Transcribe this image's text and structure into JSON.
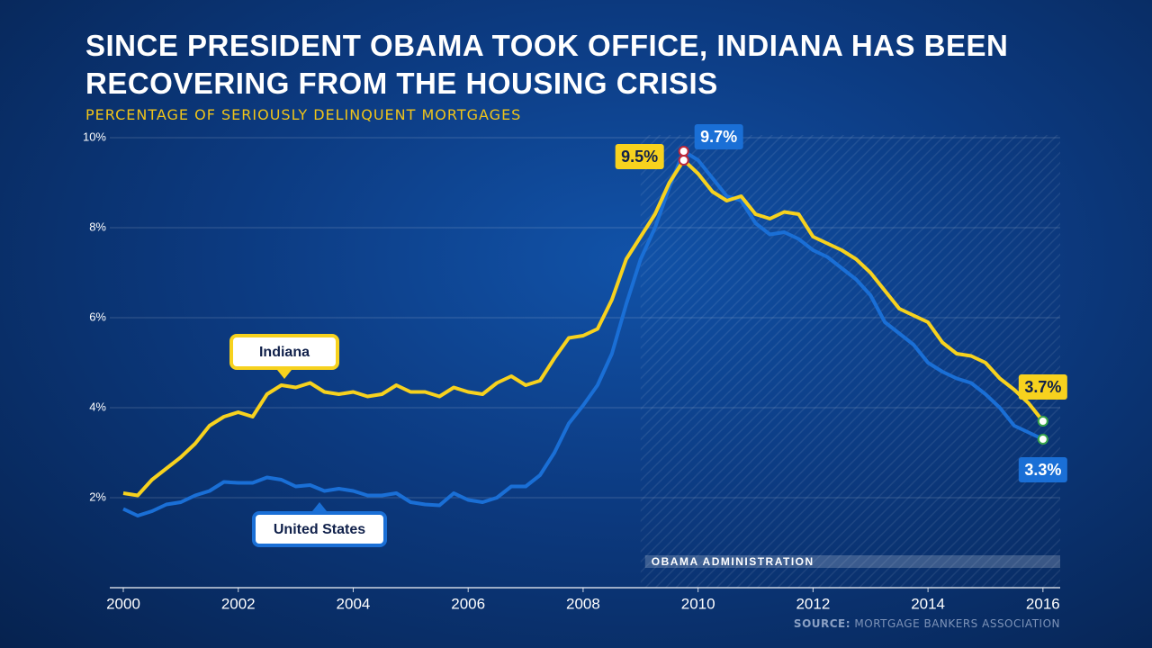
{
  "chart_data": {
    "type": "line",
    "title": "SINCE PRESIDENT OBAMA TOOK OFFICE, INDIANA HAS BEEN RECOVERING FROM THE HOUSING CRISIS",
    "subtitle": "PERCENTAGE OF SERIOUSLY DELINQUENT MORTGAGES",
    "source_label": "SOURCE:",
    "source": "MORTGAGE BANKERS ASSOCIATION",
    "x": [
      2000,
      2000.25,
      2000.5,
      2000.75,
      2001,
      2001.25,
      2001.5,
      2001.75,
      2002,
      2002.25,
      2002.5,
      2002.75,
      2003,
      2003.25,
      2003.5,
      2003.75,
      2004,
      2004.25,
      2004.5,
      2004.75,
      2005,
      2005.25,
      2005.5,
      2005.75,
      2006,
      2006.25,
      2006.5,
      2006.75,
      2007,
      2007.25,
      2007.5,
      2007.75,
      2008,
      2008.25,
      2008.5,
      2008.75,
      2009,
      2009.25,
      2009.5,
      2009.75,
      2010,
      2010.25,
      2010.5,
      2010.75,
      2011,
      2011.25,
      2011.5,
      2011.75,
      2012,
      2012.25,
      2012.5,
      2012.75,
      2013,
      2013.25,
      2013.5,
      2013.75,
      2014,
      2014.25,
      2014.5,
      2014.75,
      2015,
      2015.25,
      2015.5,
      2015.75,
      2016
    ],
    "series": [
      {
        "name": "Indiana",
        "color": "#f7d21e",
        "values": [
          2.1,
          2.05,
          2.4,
          2.65,
          2.9,
          3.2,
          3.6,
          3.8,
          3.9,
          3.8,
          4.3,
          4.5,
          4.45,
          4.55,
          4.35,
          4.3,
          4.35,
          4.25,
          4.3,
          4.5,
          4.35,
          4.35,
          4.25,
          4.45,
          4.35,
          4.3,
          4.55,
          4.7,
          4.5,
          4.6,
          5.1,
          5.55,
          5.6,
          5.75,
          6.4,
          7.3,
          7.8,
          8.3,
          9.0,
          9.5,
          9.2,
          8.8,
          8.6,
          8.7,
          8.3,
          8.2,
          8.35,
          8.3,
          7.8,
          7.65,
          7.5,
          7.3,
          7.0,
          6.6,
          6.2,
          6.05,
          5.9,
          5.45,
          5.2,
          5.15,
          5.0,
          4.65,
          4.4,
          4.1,
          3.7
        ],
        "value_labels": [
          null,
          null,
          null,
          null,
          null,
          null,
          null,
          null,
          null,
          null,
          null,
          null,
          null,
          null,
          null,
          null,
          null,
          null,
          null,
          null,
          null,
          null,
          null,
          null,
          null,
          null,
          null,
          null,
          null,
          null,
          null,
          null,
          null,
          null,
          null,
          null,
          null,
          null,
          null,
          "9.5%",
          null,
          null,
          null,
          null,
          null,
          null,
          null,
          null,
          null,
          null,
          null,
          null,
          null,
          null,
          null,
          null,
          null,
          null,
          null,
          null,
          null,
          null,
          null,
          null,
          "3.7%"
        ]
      },
      {
        "name": "United States",
        "color": "#1a6fd6",
        "values": [
          1.75,
          1.6,
          1.7,
          1.85,
          1.9,
          2.05,
          2.15,
          2.35,
          2.33,
          2.33,
          2.45,
          2.4,
          2.25,
          2.28,
          2.15,
          2.2,
          2.15,
          2.05,
          2.05,
          2.1,
          1.9,
          1.85,
          1.83,
          2.1,
          1.95,
          1.9,
          2.0,
          2.25,
          2.25,
          2.5,
          3.0,
          3.65,
          4.05,
          4.5,
          5.2,
          6.3,
          7.3,
          8.0,
          8.9,
          9.7,
          9.5,
          9.1,
          8.7,
          8.6,
          8.1,
          7.85,
          7.9,
          7.75,
          7.5,
          7.35,
          7.1,
          6.85,
          6.5,
          5.9,
          5.65,
          5.4,
          5.0,
          4.8,
          4.65,
          4.55,
          4.3,
          4.0,
          3.6,
          3.45,
          3.3
        ],
        "value_labels": [
          null,
          null,
          null,
          null,
          null,
          null,
          null,
          null,
          null,
          null,
          null,
          null,
          null,
          null,
          null,
          null,
          null,
          null,
          null,
          null,
          null,
          null,
          null,
          null,
          null,
          null,
          null,
          null,
          null,
          null,
          null,
          null,
          null,
          null,
          null,
          null,
          null,
          null,
          null,
          "9.7%",
          null,
          null,
          null,
          null,
          null,
          null,
          null,
          null,
          null,
          null,
          null,
          null,
          null,
          null,
          null,
          null,
          null,
          null,
          null,
          null,
          null,
          null,
          null,
          null,
          "3.3%"
        ]
      }
    ],
    "xlim": [
      2000,
      2016.3
    ],
    "xticks": [
      2000,
      2002,
      2004,
      2006,
      2008,
      2010,
      2012,
      2014,
      2016
    ],
    "ylim": [
      0,
      10
    ],
    "yticks": [
      {
        "value": 2,
        "label": "2%"
      },
      {
        "value": 4,
        "label": "4%"
      },
      {
        "value": 6,
        "label": "6%"
      },
      {
        "value": 8,
        "label": "8%"
      },
      {
        "value": 10,
        "label": "10%"
      }
    ],
    "grid": true,
    "shaded_region": {
      "label": "OBAMA ADMINISTRATION",
      "xrange": [
        2009,
        2016.3
      ]
    }
  }
}
